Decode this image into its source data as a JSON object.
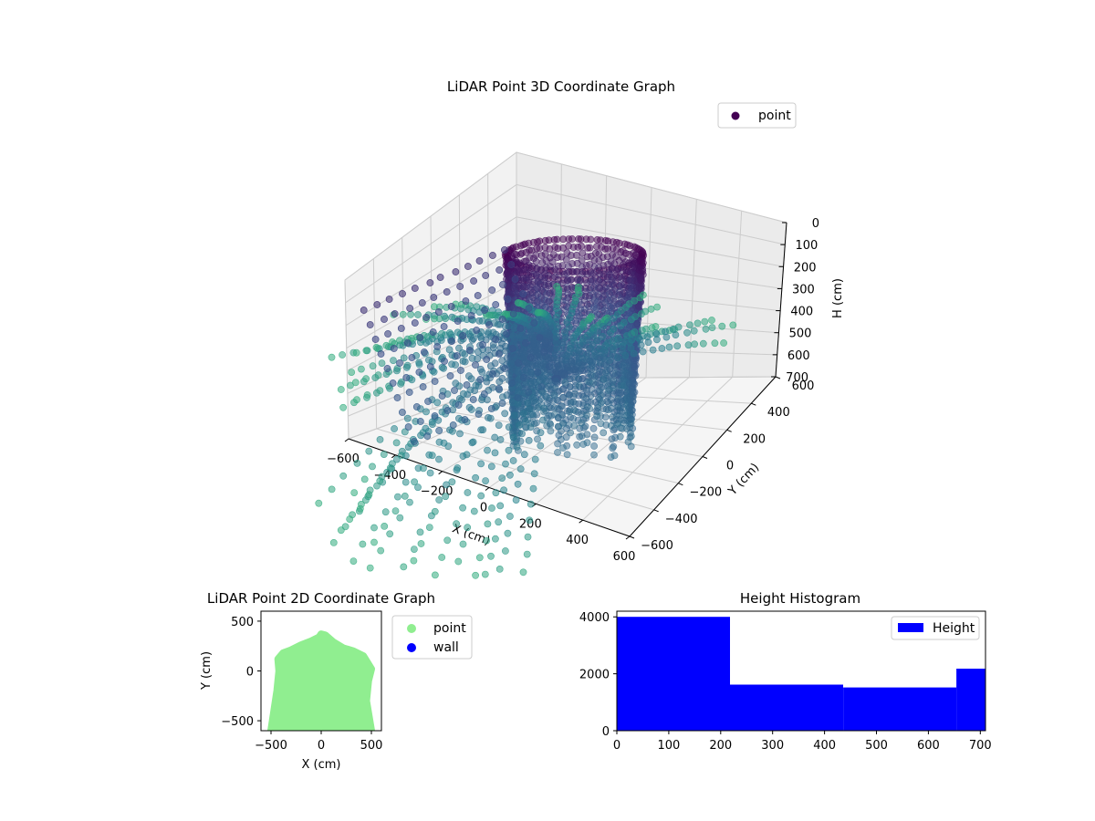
{
  "colors": {
    "viridis_top": "#440154",
    "viridis_mid": "#31688e",
    "viridis_low": "#35b779",
    "point_2d": "#90ee90",
    "wall": "#0000ff",
    "hist": "#0000ff"
  },
  "chart_data": [
    {
      "type": "scatter",
      "projection": "3d",
      "title": "LiDAR Point 3D Coordinate Graph",
      "xlabel": "X (cm)",
      "ylabel": "Y (cm)",
      "zlabel": "H (cm)",
      "xlim": [
        -600,
        600
      ],
      "ylim": [
        -600,
        600
      ],
      "zlim": [
        0,
        700
      ],
      "z_inverted": true,
      "xticks": [
        "−600",
        "−400",
        "−200",
        "0",
        "200",
        "400",
        "600"
      ],
      "yticks": [
        "−600",
        "−400",
        "−200",
        "0",
        "200",
        "400",
        "600"
      ],
      "zticks": [
        "0",
        "100",
        "200",
        "300",
        "400",
        "500",
        "600",
        "700"
      ],
      "legend": [
        "point"
      ],
      "legend_position": "top-right",
      "colormap": "viridis",
      "grid": true
    },
    {
      "type": "scatter",
      "title": "LiDAR Point 2D Coordinate Graph",
      "xlabel": "X (cm)",
      "ylabel": "Y (cm)",
      "xlim": [
        -600,
        600
      ],
      "ylim": [
        -600,
        600
      ],
      "xticks": [
        "−500",
        "0",
        "500"
      ],
      "yticks": [
        "−500",
        "0",
        "500"
      ],
      "series": [
        {
          "name": "point",
          "color": "#90ee90",
          "outline": [
            [
              -500,
              -600
            ],
            [
              -470,
              -400
            ],
            [
              -440,
              -200
            ],
            [
              -420,
              0
            ],
            [
              -430,
              120
            ],
            [
              -380,
              180
            ],
            [
              -300,
              210
            ],
            [
              -200,
              260
            ],
            [
              -100,
              300
            ],
            [
              -20,
              340
            ],
            [
              0,
              370
            ],
            [
              40,
              360
            ],
            [
              120,
              290
            ],
            [
              220,
              230
            ],
            [
              320,
              200
            ],
            [
              420,
              150
            ],
            [
              500,
              20
            ],
            [
              470,
              -100
            ],
            [
              450,
              -300
            ],
            [
              500,
              -600
            ]
          ]
        },
        {
          "name": "wall",
          "color": "#0000ff",
          "points": []
        }
      ],
      "legend_position": "outside-right"
    },
    {
      "type": "bar",
      "subtype": "histogram",
      "title": "Height Histogram",
      "xlim": [
        0,
        710
      ],
      "ylim": [
        0,
        4200
      ],
      "xticks": [
        "0",
        "100",
        "200",
        "300",
        "400",
        "500",
        "600",
        "700"
      ],
      "yticks": [
        "0",
        "2000",
        "4000"
      ],
      "bins": [
        [
          0,
          218
        ],
        [
          218,
          436
        ],
        [
          436,
          654
        ],
        [
          654,
          710
        ]
      ],
      "values": [
        4000,
        1620,
        1520,
        2180
      ],
      "legend": [
        "Height"
      ],
      "legend_position": "top-right",
      "color": "#0000ff"
    }
  ]
}
